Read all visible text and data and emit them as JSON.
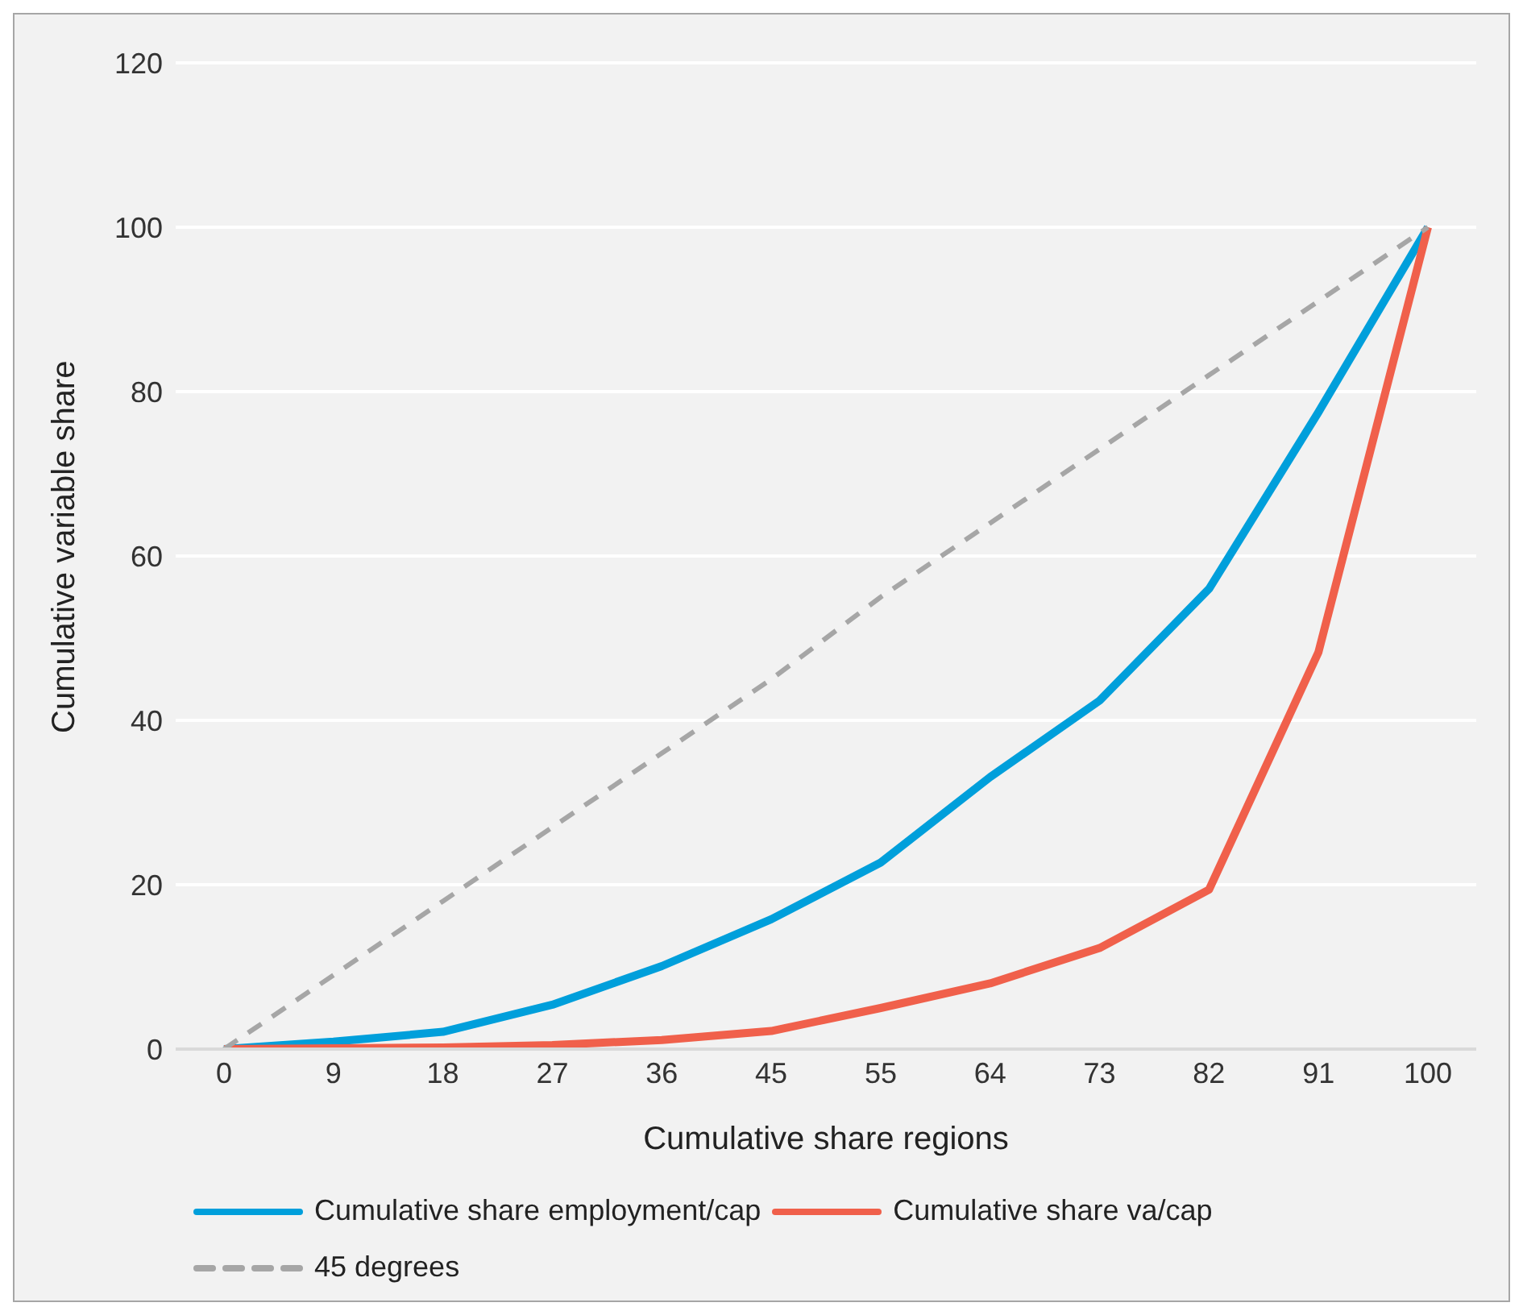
{
  "chart_data": {
    "type": "line",
    "xlabel": "Cumulative share regions",
    "ylabel": "Cumulative variable share",
    "categories": [
      "0",
      "9",
      "18",
      "27",
      "36",
      "45",
      "55",
      "64",
      "73",
      "82",
      "91",
      "100"
    ],
    "ylim": [
      0,
      120
    ],
    "yticks": [
      0,
      20,
      40,
      60,
      80,
      100,
      120
    ],
    "grid": "y",
    "legend": "bottom",
    "marker": "none",
    "series": [
      {
        "name": "Cumulative share employment/cap",
        "color": "#009fdb",
        "line_style": "solid",
        "values": [
          0,
          0.9,
          2.1,
          5.4,
          10.1,
          15.8,
          22.7,
          33.1,
          42.4,
          56,
          77.5,
          100
        ]
      },
      {
        "name": "Cumulative share va/cap",
        "color": "#f0604b",
        "line_style": "solid",
        "values": [
          0,
          0.1,
          0.2,
          0.5,
          1.1,
          2.2,
          5,
          8,
          12.3,
          19.4,
          48.3,
          100
        ]
      },
      {
        "name": "45 degrees",
        "color": "#a6a6a6",
        "line_style": "dashed",
        "values": [
          0,
          9,
          18,
          27,
          36,
          45,
          55,
          64,
          73,
          82,
          91,
          100
        ]
      }
    ]
  }
}
